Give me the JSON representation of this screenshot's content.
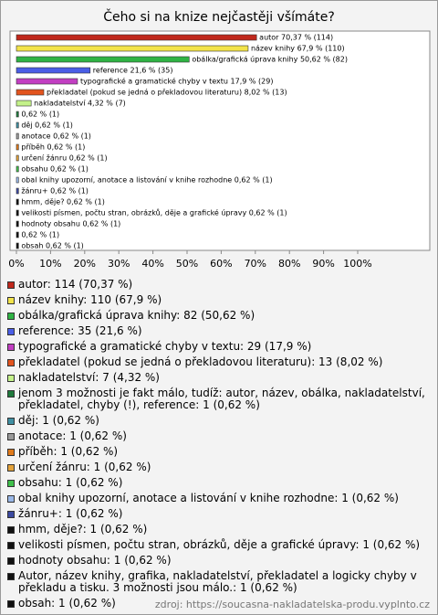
{
  "chart_data": {
    "type": "bar",
    "orientation": "horizontal",
    "title": "Čeho si na knize nejčastěji všímáte?",
    "values": [
      70.37,
      67.9,
      50.62,
      21.6,
      17.9,
      8.02,
      4.32,
      0.62,
      0.62,
      0.62,
      0.62,
      0.62,
      0.62,
      0.62,
      0.62,
      0.62,
      0.62,
      0.62,
      0.62,
      0.62
    ],
    "value_labels": [
      "autor 70,37 % (114)",
      "název knihy 67,9 % (110)",
      "obálka/grafická úprava knihy 50,62 % (82)",
      "reference 21,6 % (35)",
      "typografické a gramatické chyby v textu 17,9 % (29)",
      "překladatel (pokud se jedná o překladovou literaturu) 8,02 % (13)",
      "nakladatelství 4,32 % (7)",
      "0,62 % (1)",
      "děj 0,62 % (1)",
      "anotace 0,62 % (1)",
      "příběh 0,62 % (1)",
      "určení žánru 0,62 % (1)",
      "obsahu 0,62 % (1)",
      "obal knihy upozorní, anotace a listování v knihe rozhodne 0,62 % (1)",
      "žánru+ 0,62 % (1)",
      "hmm, děje? 0,62 % (1)",
      "velikosti písmen, počtu stran, obrázků, děje a grafické úpravy 0,62 % (1)",
      "hodnoty obsahu 0,62 % (1)",
      "0,62 % (1)",
      "obsah 0,62 % (1)"
    ],
    "legend_labels": [
      "autor: 114 (70,37 %)",
      "název knihy: 110 (67,9 %)",
      "obálka/grafická úprava knihy: 82 (50,62 %)",
      "reference: 35 (21,6 %)",
      "typografické a gramatické chyby v textu: 29 (17,9 %)",
      "překladatel (pokud se jedná o překladovou literaturu): 13 (8,02 %)",
      "nakladatelství: 7 (4,32 %)",
      "jenom 3 možnosti je fakt málo, tudíž: autor, název, obálka, nakladatelství, překladatel, chyby (!), reference: 1 (0,62 %)",
      "děj: 1 (0,62 %)",
      "anotace: 1 (0,62 %)",
      "příběh: 1 (0,62 %)",
      "určení žánru: 1 (0,62 %)",
      "obsahu: 1 (0,62 %)",
      "obal knihy upozorní, anotace a listování v knihe rozhodne: 1 (0,62 %)",
      "žánru+: 1 (0,62 %)",
      "hmm, děje?: 1 (0,62 %)",
      "velikosti písmen, počtu stran, obrázků, děje a grafické úpravy: 1 (0,62 %)",
      "hodnoty obsahu: 1 (0,62 %)",
      "Autor, název knihy, grafika, nakladatelství, překladatel a logicky chyby v překladu a tisku. 3 možnosti jsou málo.: 1 (0,62 %)",
      "obsah: 1 (0,62 %)"
    ],
    "colors": [
      "#c0281c",
      "#f2e34a",
      "#2fb344",
      "#4a5ee6",
      "#c23fc2",
      "#e2541e",
      "#c4f28a",
      "#1f7a3c",
      "#3f8fa2",
      "#9a9a9a",
      "#e07a1c",
      "#e3a23a",
      "#3fbf4a",
      "#9ab8e8",
      "#3c4aa0",
      "#111111",
      "#111111",
      "#111111",
      "#111111",
      "#111111"
    ],
    "xlim": [
      0,
      100
    ],
    "xticks": [
      {
        "value": 0,
        "label": "0%"
      },
      {
        "value": 10,
        "label": "10%"
      },
      {
        "value": 20,
        "label": "20%"
      },
      {
        "value": 30,
        "label": "30%"
      },
      {
        "value": 40,
        "label": "40%"
      },
      {
        "value": 50,
        "label": "50%"
      },
      {
        "value": 60,
        "label": "60%"
      },
      {
        "value": 70,
        "label": "70%"
      },
      {
        "value": 80,
        "label": "80%"
      },
      {
        "value": 90,
        "label": "90%"
      },
      {
        "value": 100,
        "label": "100%"
      }
    ],
    "source": "zdroj: https://soucasna-nakladatelska-produ.vyplnto.cz"
  }
}
